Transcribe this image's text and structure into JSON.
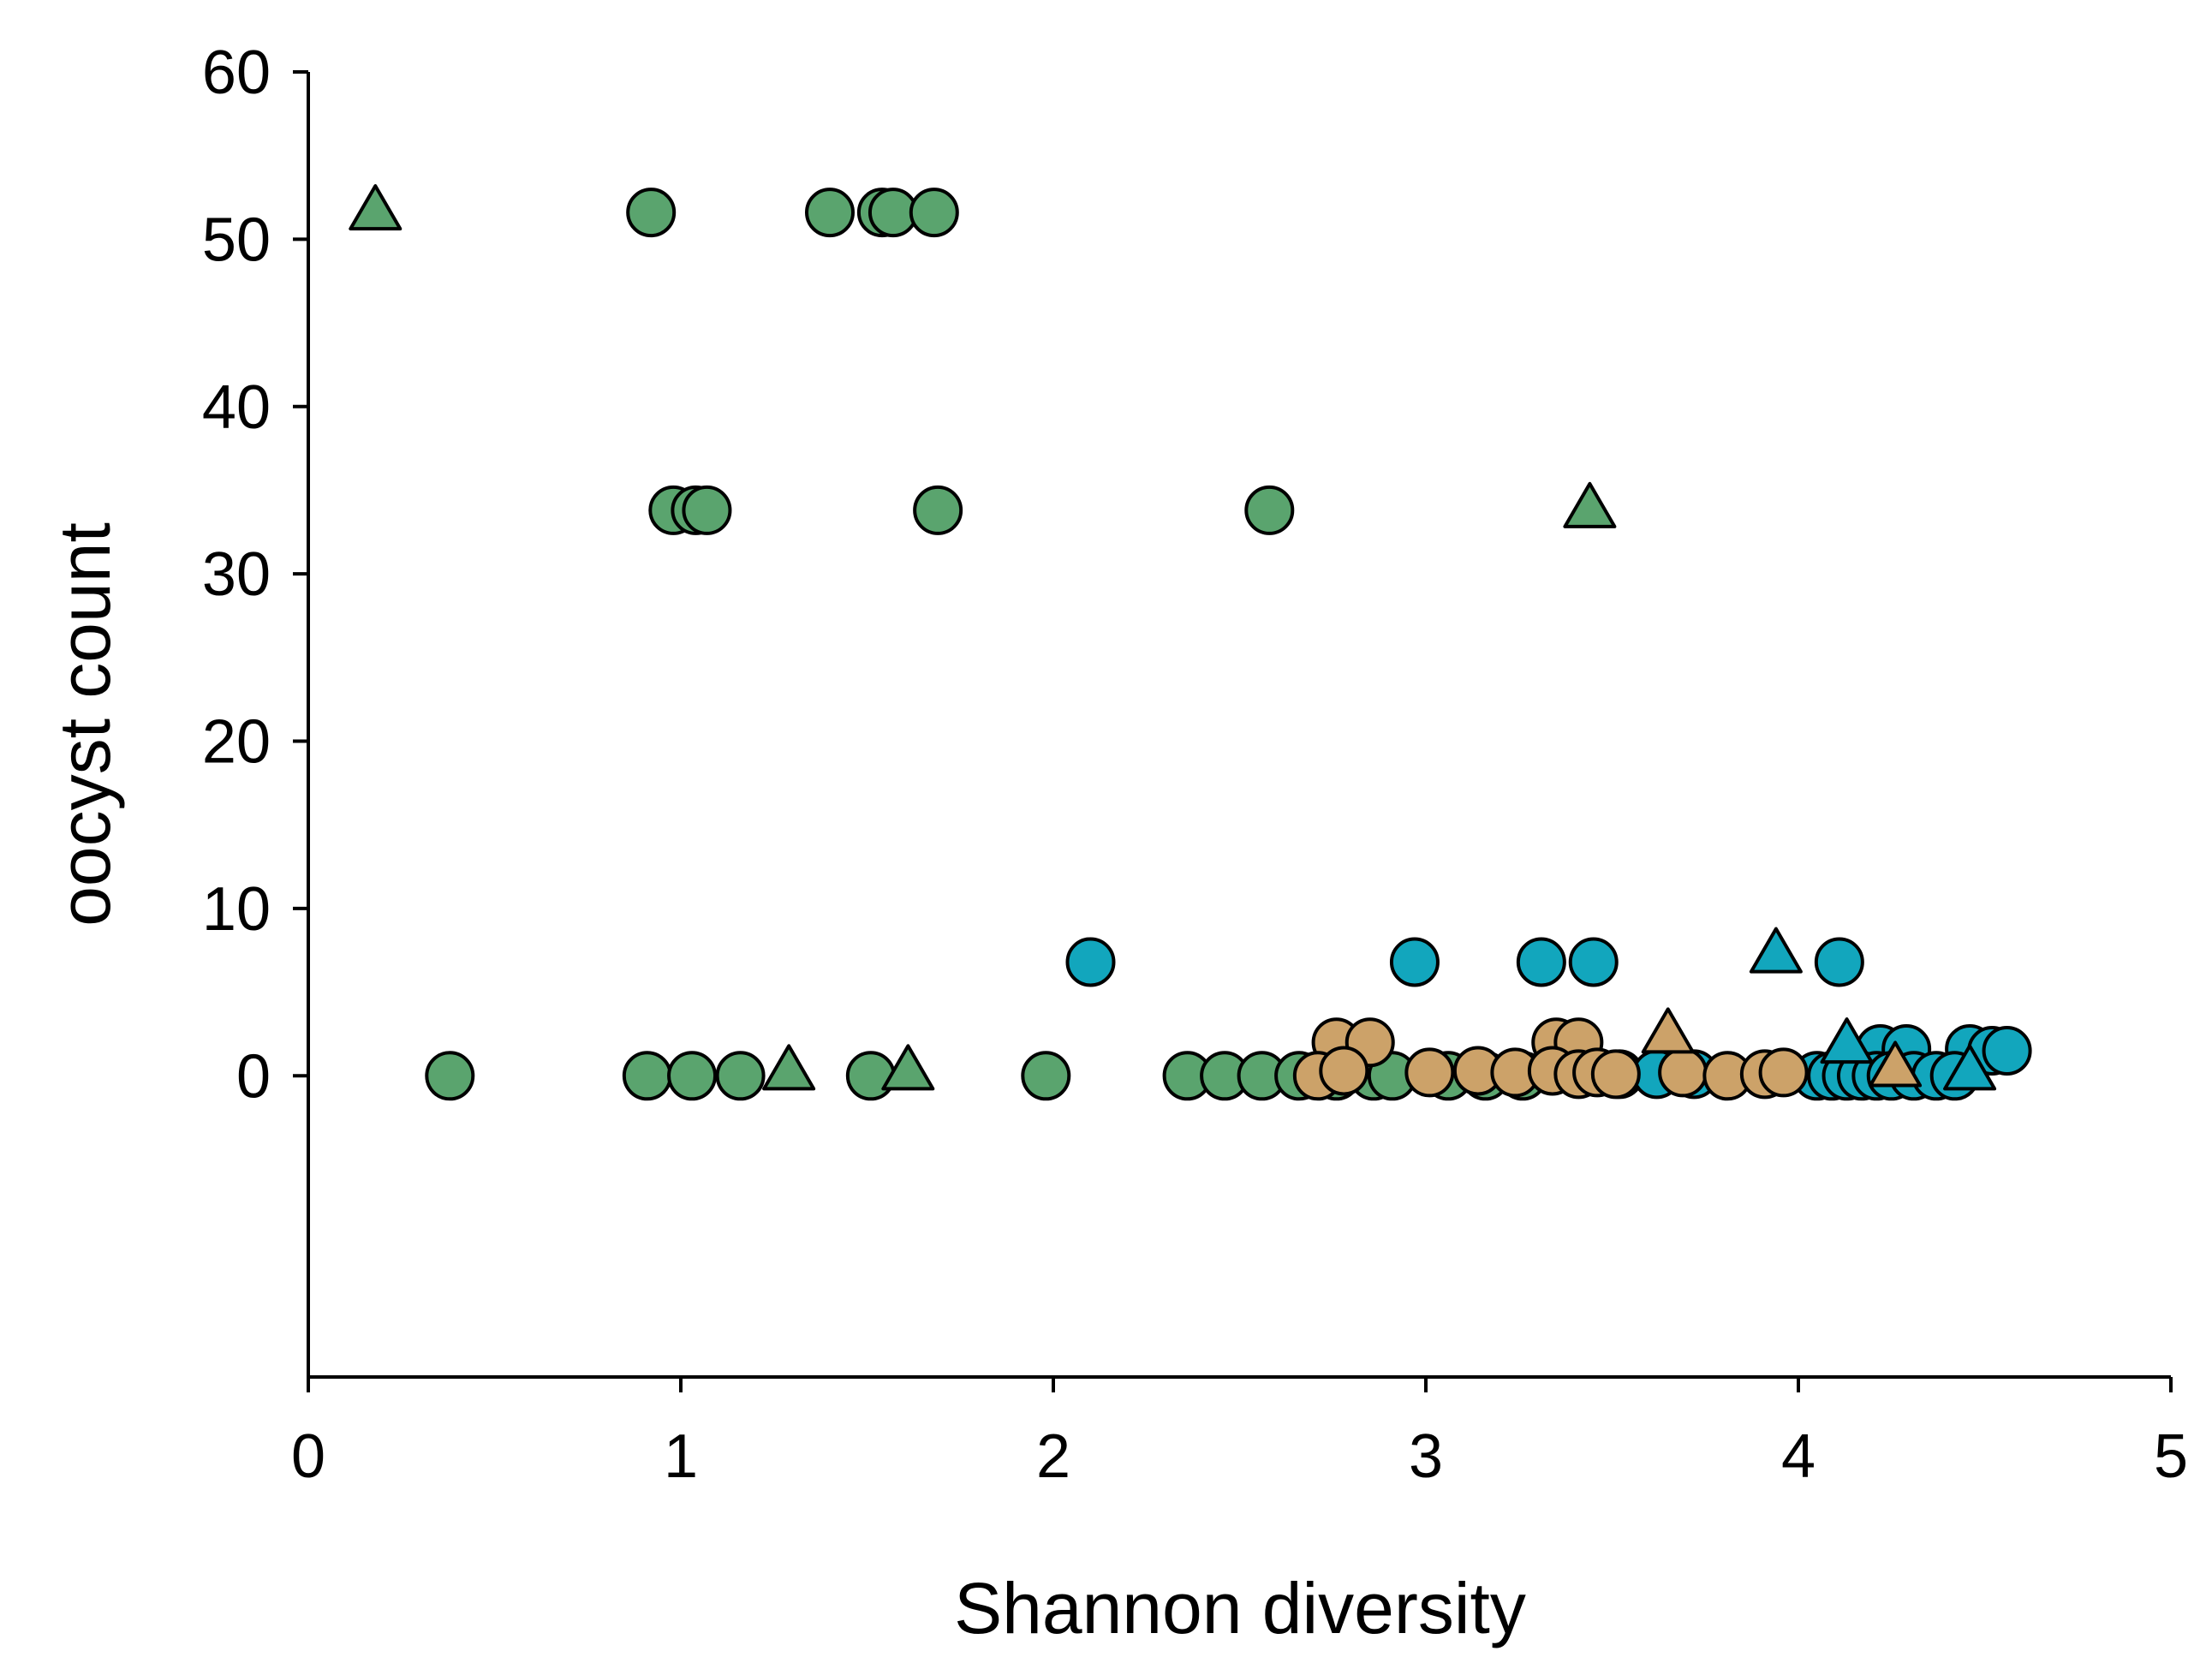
{
  "chart_data": {
    "type": "scatter",
    "title": "",
    "xlabel": "Shannon diversity",
    "ylabel": "oocyst count",
    "xlim": [
      0,
      5
    ],
    "ylim": [
      -18,
      60
    ],
    "xticks": [
      "0",
      "1",
      "2",
      "3",
      "4",
      "5"
    ],
    "yticks": [
      "0",
      "10",
      "20",
      "30",
      "40",
      "50",
      "60"
    ],
    "xtick_values": [
      0,
      1,
      2,
      3,
      4,
      5
    ],
    "ytick_values": [
      0,
      10,
      20,
      30,
      40,
      50,
      60
    ],
    "grid": false,
    "legend": "none",
    "stroke_color": "#000000",
    "series": [
      {
        "name": "green-circle",
        "color": "#5aa46e",
        "marker": "circle",
        "points": [
          [
            0.92,
            51.6
          ],
          [
            1.4,
            51.6
          ],
          [
            1.54,
            51.6
          ],
          [
            1.57,
            51.6
          ],
          [
            1.68,
            51.6
          ],
          [
            0.98,
            33.8
          ],
          [
            1.04,
            33.8
          ],
          [
            1.07,
            33.8
          ],
          [
            1.69,
            33.8
          ],
          [
            2.58,
            33.8
          ],
          [
            0.38,
            0
          ],
          [
            0.91,
            0
          ],
          [
            1.03,
            0
          ],
          [
            1.16,
            0
          ],
          [
            1.51,
            0
          ],
          [
            1.98,
            0
          ],
          [
            2.36,
            0
          ],
          [
            2.46,
            0
          ],
          [
            2.56,
            0
          ],
          [
            2.66,
            0
          ],
          [
            2.76,
            0
          ],
          [
            2.86,
            0
          ],
          [
            2.91,
            0
          ],
          [
            3.06,
            0
          ],
          [
            3.16,
            0
          ],
          [
            3.26,
            0
          ]
        ]
      },
      {
        "name": "green-triangle",
        "color": "#5aa46e",
        "marker": "triangle",
        "points": [
          [
            0.18,
            51.6
          ],
          [
            3.44,
            33.8
          ],
          [
            1.29,
            0.2
          ],
          [
            1.61,
            0.2
          ]
        ]
      },
      {
        "name": "blue-circle",
        "color": "#12a6bd",
        "marker": "circle",
        "points": [
          [
            2.1,
            6.8
          ],
          [
            2.97,
            6.8
          ],
          [
            3.31,
            6.8
          ],
          [
            3.45,
            6.8
          ],
          [
            4.11,
            6.8
          ],
          [
            4.22,
            1.6
          ],
          [
            4.29,
            1.6
          ],
          [
            4.46,
            1.6
          ],
          [
            4.52,
            1.5
          ],
          [
            4.56,
            1.5
          ],
          [
            3.52,
            0.1
          ],
          [
            3.62,
            0.1
          ],
          [
            3.72,
            0.1
          ],
          [
            4.05,
            0
          ],
          [
            4.09,
            0
          ],
          [
            4.13,
            0
          ],
          [
            4.17,
            0
          ],
          [
            4.21,
            0
          ],
          [
            4.25,
            0
          ],
          [
            4.31,
            0
          ],
          [
            4.37,
            0
          ],
          [
            4.42,
            0
          ]
        ]
      },
      {
        "name": "blue-triangle",
        "color": "#12a6bd",
        "marker": "triangle",
        "points": [
          [
            3.94,
            7.2
          ],
          [
            4.13,
            1.8
          ],
          [
            4.46,
            0.2
          ]
        ]
      },
      {
        "name": "tan-circle",
        "color": "#cca269",
        "marker": "circle",
        "points": [
          [
            2.76,
            2.0
          ],
          [
            2.85,
            2.0
          ],
          [
            3.35,
            2.0
          ],
          [
            3.41,
            2.0
          ],
          [
            2.71,
            0
          ],
          [
            2.78,
            0.3
          ],
          [
            3.01,
            0.2
          ],
          [
            3.14,
            0.3
          ],
          [
            3.24,
            0.2
          ],
          [
            3.34,
            0.3
          ],
          [
            3.41,
            0.1
          ],
          [
            3.46,
            0.2
          ],
          [
            3.51,
            0.1
          ],
          [
            3.69,
            0.2
          ],
          [
            3.81,
            0
          ],
          [
            3.91,
            0.1
          ],
          [
            3.96,
            0.2
          ]
        ]
      },
      {
        "name": "tan-triangle",
        "color": "#cca269",
        "marker": "triangle",
        "points": [
          [
            3.65,
            2.4
          ],
          [
            4.26,
            0.4
          ]
        ]
      }
    ]
  }
}
